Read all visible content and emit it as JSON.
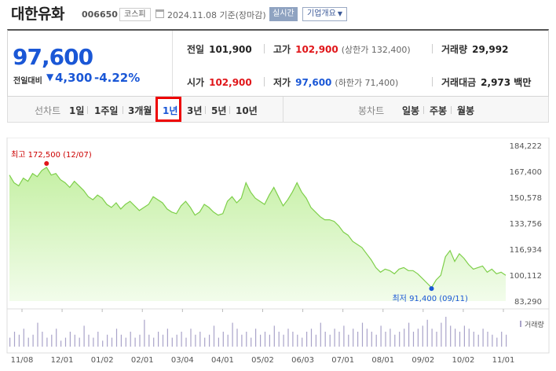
{
  "header": {
    "company": "대한유화",
    "code": "006650",
    "market": "코스피",
    "date_text": "2024.11.08 기준(장마감)",
    "realtime_label": "실시간",
    "overview_label": "기업개요"
  },
  "summary": {
    "current_price": "97,600",
    "change_label": "전일대비",
    "change_value": "4,300",
    "change_percent": "-4.22%",
    "prev_close": {
      "label": "전일",
      "value": "101,900"
    },
    "high": {
      "label": "고가",
      "value": "102,900",
      "sub": "(상한가 132,400)"
    },
    "volume": {
      "label": "거래량",
      "value": "29,992"
    },
    "open": {
      "label": "시가",
      "value": "102,900"
    },
    "low": {
      "label": "저가",
      "value": "97,600",
      "sub": "(하한가 71,400)"
    },
    "trade_value": {
      "label": "거래대금",
      "value": "2,973 백만"
    }
  },
  "colors": {
    "up": "#e0161a",
    "down": "#1a57d6",
    "area_fill_top": "#c5f0a4",
    "area_line": "#7ecf4a",
    "volume_bar": "#a9a3c9"
  },
  "period_bar": {
    "line_chart_label": "선차트",
    "periods": [
      "1일",
      "1주일",
      "3개월",
      "1년",
      "3년",
      "5년",
      "10년"
    ],
    "selected": "1년",
    "candle_label": "봉차트",
    "candles": [
      "일봉",
      "주봉",
      "월봉"
    ]
  },
  "chart_data": {
    "type": "area",
    "title": "",
    "xlabel": "",
    "ylabel": "",
    "ylim": [
      83290,
      184222
    ],
    "yticks": [
      "184,222",
      "167,400",
      "150,578",
      "133,756",
      "116,934",
      "100,112",
      "83,290"
    ],
    "xticks": [
      "11/08",
      "12/01",
      "01/02",
      "02/01",
      "03/04",
      "04/01",
      "05/02",
      "06/03",
      "07/01",
      "08/01",
      "09/02",
      "10/02",
      "11/01"
    ],
    "series": [
      {
        "values": [
          165000,
          160000,
          158000,
          163000,
          161000,
          166000,
          164000,
          168000,
          170000,
          165000,
          166000,
          162000,
          160000,
          157000,
          161000,
          158000,
          155000,
          151000,
          149000,
          152000,
          150000,
          146000,
          144000,
          147000,
          143000,
          146000,
          148000,
          145000,
          142000,
          144000,
          146000,
          151000,
          149000,
          147000,
          143000,
          141000,
          140000,
          145000,
          148000,
          144000,
          139000,
          141000,
          146000,
          144000,
          141000,
          139000,
          140000,
          148000,
          151000,
          147000,
          150000,
          160000,
          154000,
          150000,
          148000,
          146000,
          152000,
          157000,
          151000,
          145000,
          149000,
          154000,
          160000,
          154000,
          150000,
          144000,
          141000,
          138000,
          136000,
          136000,
          135000,
          132000,
          128000,
          126000,
          122000,
          120000,
          118000,
          114000,
          110000,
          105000,
          102000,
          104000,
          103000,
          101000,
          104000,
          105000,
          103000,
          103000,
          101000,
          98000,
          95000,
          92000,
          97000,
          100000,
          112000,
          116000,
          109000,
          114000,
          111000,
          107000,
          104000,
          105000,
          106000,
          102000,
          104000,
          101000,
          102000,
          100000
        ]
      }
    ],
    "volume_label": "거래량",
    "volume": [
      3,
      5,
      4,
      6,
      3,
      4,
      8,
      5,
      3,
      4,
      6,
      2,
      3,
      5,
      4,
      3,
      7,
      4,
      3,
      5,
      2,
      4,
      3,
      6,
      4,
      3,
      5,
      3,
      4,
      9,
      4,
      3,
      5,
      4,
      6,
      3,
      4,
      5,
      3,
      6,
      4,
      5,
      3,
      4,
      7,
      3,
      5,
      4,
      8,
      6,
      4,
      5,
      3,
      6,
      4,
      5,
      4,
      7,
      5,
      4,
      6,
      5,
      4,
      3,
      5,
      6,
      4,
      8,
      5,
      4,
      6,
      5,
      7,
      4,
      6,
      5,
      8,
      6,
      5,
      4,
      7,
      5,
      6,
      4,
      5,
      6,
      8,
      5,
      6,
      7,
      9,
      6,
      5,
      8,
      10,
      7,
      6,
      5,
      7,
      6,
      5,
      4,
      6,
      5,
      4,
      3,
      5,
      4
    ],
    "annotations": [
      {
        "label": "최고 172,500 (12/07)",
        "value": 172500,
        "kind": "high"
      },
      {
        "label": "최저 91,400 (09/11)",
        "value": 91400,
        "kind": "low"
      }
    ]
  }
}
